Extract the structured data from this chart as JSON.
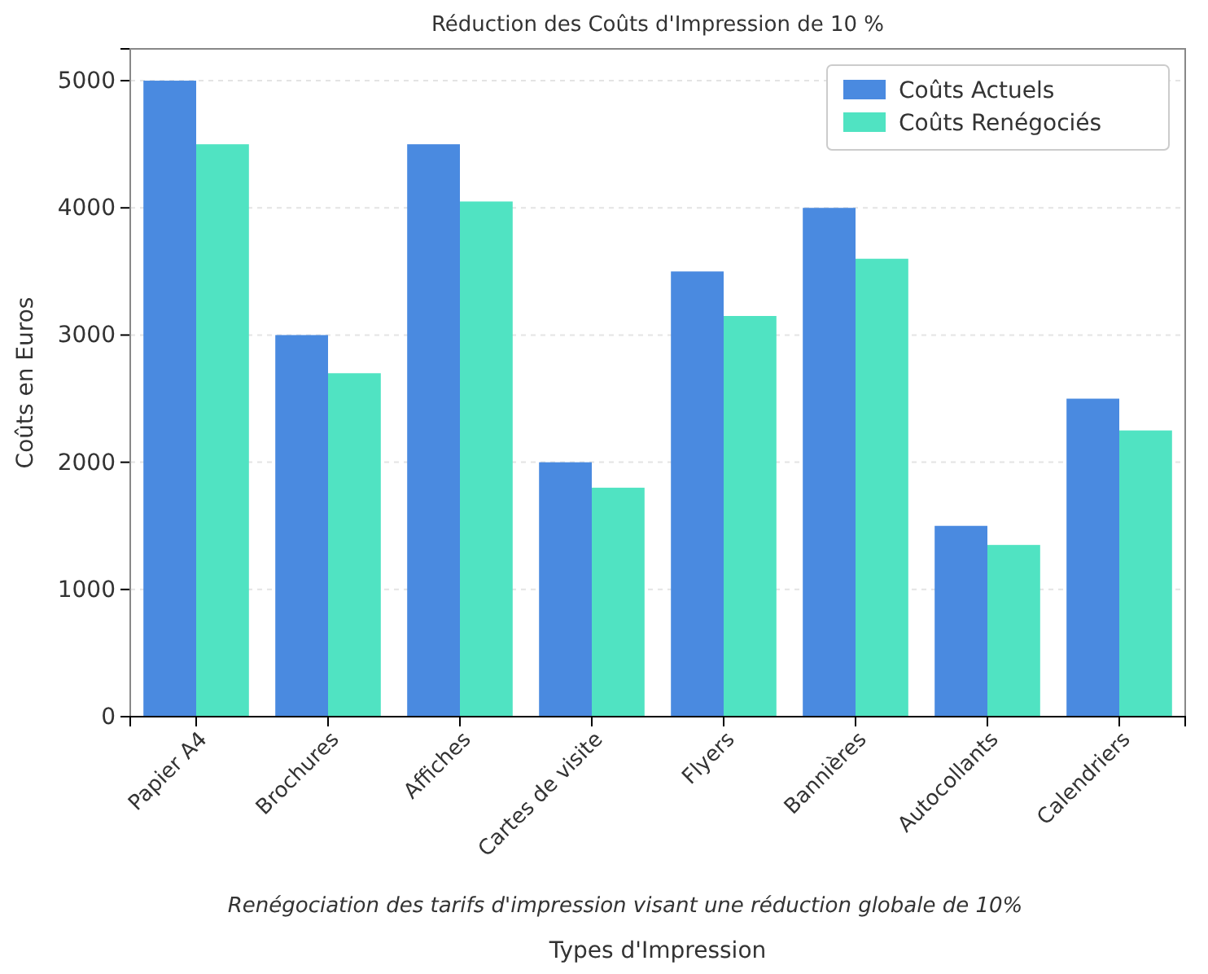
{
  "chart_data": {
    "type": "bar",
    "title": "Réduction des Coûts d'Impression de 10 %",
    "xlabel": "Types d'Impression",
    "ylabel": "Coûts en Euros",
    "annotations": [
      "Renégociation des tarifs d'impression visant une réduction globale de 10%"
    ],
    "categories": [
      "Papier A4",
      "Brochures",
      "Affiches",
      "Cartes de visite",
      "Flyers",
      "Bannières",
      "Autocollants",
      "Calendriers"
    ],
    "series": [
      {
        "name": "Coûts Actuels",
        "color": "#4a8ae0",
        "values": [
          5000,
          3000,
          4500,
          2000,
          3500,
          4000,
          1500,
          2500
        ]
      },
      {
        "name": "Coûts Renégociés",
        "color": "#50e3c2",
        "values": [
          4500,
          2700,
          4050,
          1800,
          3150,
          3600,
          1350,
          2250
        ]
      }
    ],
    "ylim": [
      0,
      5250
    ],
    "yticks": [
      0,
      1000,
      2000,
      3000,
      4000,
      5000
    ],
    "grid": "y",
    "legend": "top right"
  }
}
